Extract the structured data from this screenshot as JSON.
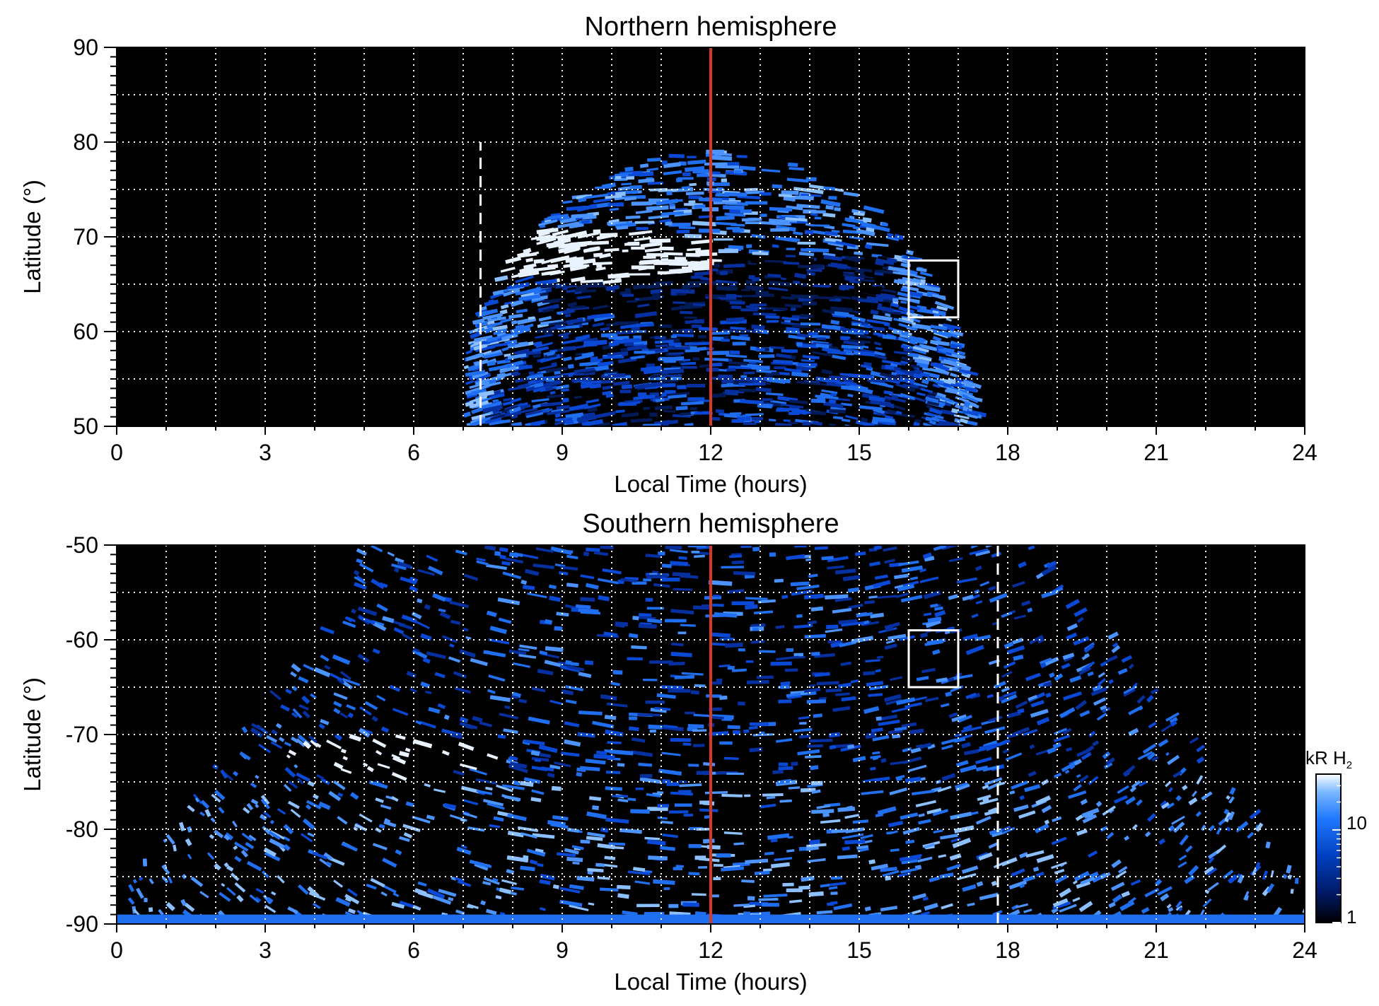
{
  "chart_data": [
    {
      "type": "heatmap",
      "title": "Northern hemisphere",
      "xlabel": "Local Time (hours)",
      "ylabel": "Latitude (°)",
      "xlim": [
        0,
        24
      ],
      "ylim": [
        50,
        90
      ],
      "x_ticks": [
        0,
        3,
        6,
        9,
        12,
        15,
        18,
        21,
        24
      ],
      "y_ticks": [
        50,
        60,
        70,
        80,
        90
      ],
      "grid": true,
      "grid_style": "dotted-white",
      "reference_line_red": {
        "x": 12
      },
      "reference_line_dashed_white": {
        "x": 7.35,
        "y_from": 50,
        "y_to": 80
      },
      "box": {
        "x": [
          16,
          17
        ],
        "y": [
          61.5,
          67.5
        ]
      },
      "emission_region": {
        "x_range": [
          7,
          17.2
        ],
        "y_max": 79,
        "poleward_void": {
          "x_range": [
            8.5,
            15.5
          ],
          "y_top": 68
        }
      },
      "bright_spot": {
        "x": 9.5,
        "y": 68
      }
    },
    {
      "type": "heatmap",
      "title": "Southern hemisphere",
      "xlabel": "Local Time (hours)",
      "ylabel": "Latitude (°)",
      "xlim": [
        0,
        24
      ],
      "ylim": [
        -90,
        -50
      ],
      "x_ticks": [
        0,
        3,
        6,
        9,
        12,
        15,
        18,
        21,
        24
      ],
      "y_ticks": [
        -90,
        -80,
        -70,
        -60,
        -50
      ],
      "grid": true,
      "grid_style": "dotted-white",
      "reference_line_red": {
        "x": 12
      },
      "reference_line_dashed_white": {
        "x": 17.8,
        "y_from": -90,
        "y_to": -50
      },
      "box": {
        "x": [
          16,
          17
        ],
        "y": [
          -65,
          -59
        ]
      },
      "bright_spot": {
        "x": 5.5,
        "y": -72
      }
    }
  ],
  "colorbar": {
    "unit_text": "kR H",
    "unit_sub": "2",
    "tick_labels": [
      "1",
      "10"
    ],
    "scale": "log",
    "colors": [
      "#000000",
      "#001a66",
      "#0040c0",
      "#1f78ff",
      "#7ab8ff",
      "#ffffff"
    ]
  }
}
